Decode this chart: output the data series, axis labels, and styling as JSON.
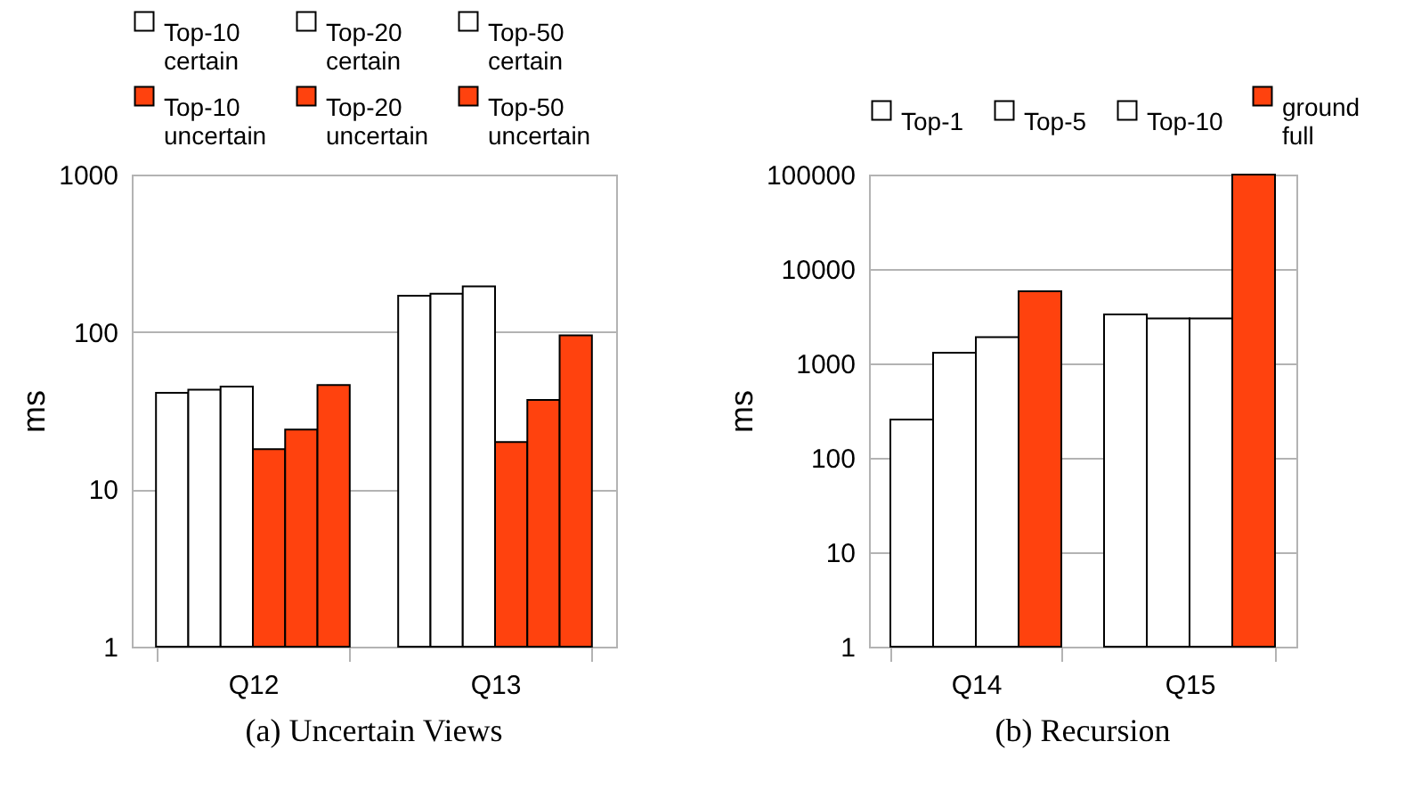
{
  "chart_data": [
    {
      "type": "bar",
      "title": "(a) Uncertain Views",
      "ylabel": "ms",
      "categories": [
        "Q12",
        "Q13"
      ],
      "log": true,
      "ylim": [
        1,
        1000
      ],
      "yticks": [
        1,
        10,
        100,
        1000
      ],
      "grid": "y",
      "legend": "top",
      "series": [
        {
          "name": "Top-10 certain",
          "color": "#ffffff",
          "values": [
            41,
            170
          ]
        },
        {
          "name": "Top-20 certain",
          "color": "#ffffff",
          "values": [
            43,
            175
          ]
        },
        {
          "name": "Top-50 certain",
          "color": "#ffffff",
          "values": [
            45,
            195
          ]
        },
        {
          "name": "Top-10 uncertain",
          "color": "#ff420e",
          "values": [
            18,
            20
          ]
        },
        {
          "name": "Top-20 uncertain",
          "color": "#ff420e",
          "values": [
            24,
            37
          ]
        },
        {
          "name": "Top-50 uncertain",
          "color": "#ff420e",
          "values": [
            46,
            95
          ]
        }
      ]
    },
    {
      "type": "bar",
      "title": "(b) Recursion",
      "ylabel": "ms",
      "categories": [
        "Q14",
        "Q15"
      ],
      "log": true,
      "ylim": [
        1,
        100000
      ],
      "yticks": [
        1,
        10,
        100,
        1000,
        10000,
        100000
      ],
      "grid": "y",
      "legend": "top",
      "series": [
        {
          "name": "Top-1",
          "color": "#ffffff",
          "values": [
            255,
            3300
          ]
        },
        {
          "name": "Top-5",
          "color": "#ffffff",
          "values": [
            1300,
            3000
          ]
        },
        {
          "name": "Top-10",
          "color": "#ffffff",
          "values": [
            1900,
            3000
          ]
        },
        {
          "name": "ground full",
          "color": "#ff420e",
          "values": [
            5800,
            100000
          ]
        }
      ]
    }
  ]
}
